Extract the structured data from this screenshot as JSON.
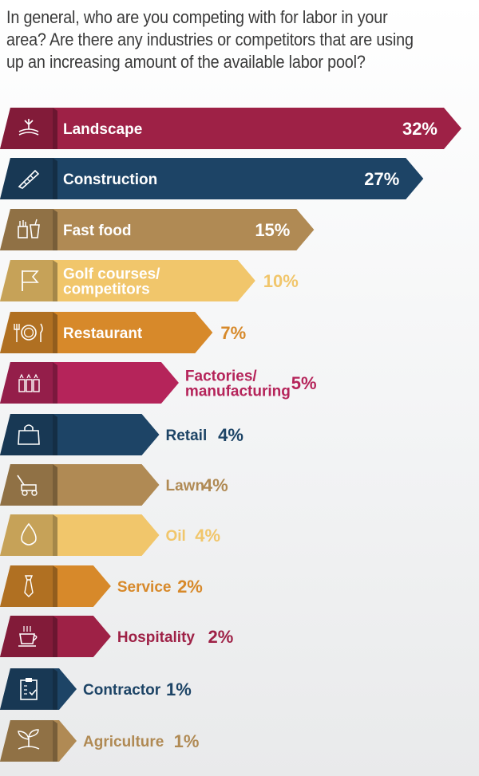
{
  "question": "In general, who are you competing with for labor in your area? Are there any industries or competitors that are using up an increasing amount of the available labor pool?",
  "chart_data": {
    "type": "bar",
    "orientation": "horizontal",
    "categories": [
      "Landscape",
      "Construction",
      "Fast food",
      "Golf courses/ competitors",
      "Restaurant",
      "Factories/ manufacturing",
      "Retail",
      "Lawn",
      "Oil",
      "Service",
      "Hospitality",
      "Contractor",
      "Agriculture"
    ],
    "values": [
      32,
      27,
      15,
      10,
      7,
      5,
      4,
      4,
      4,
      2,
      2,
      1,
      1
    ],
    "value_labels": [
      "32%",
      "27%",
      "15%",
      "10%",
      "7%",
      "5%",
      "4%",
      "4%",
      "4%",
      "2%",
      "2%",
      "1%",
      "1%"
    ],
    "label_lines": [
      [
        "Landscape"
      ],
      [
        "Construction"
      ],
      [
        "Fast food"
      ],
      [
        "Golf courses/",
        "competitors"
      ],
      [
        "Restaurant"
      ],
      [
        "Factories/",
        "manufacturing"
      ],
      [
        "Retail"
      ],
      [
        "Lawn"
      ],
      [
        "Oil"
      ],
      [
        "Service"
      ],
      [
        "Hospitality"
      ],
      [
        "Contractor"
      ],
      [
        "Agriculture"
      ]
    ],
    "icons": [
      "landscape-icon",
      "saw-icon",
      "fast-food-icon",
      "golf-flag-icon",
      "plate-utensils-icon",
      "factory-icon",
      "shopping-bag-icon",
      "lawn-mower-icon",
      "oil-drop-icon",
      "necktie-icon",
      "coffee-cup-icon",
      "clipboard-icon",
      "sprout-icon"
    ],
    "colors": [
      "#9e2146",
      "#1d4466",
      "#b08a54",
      "#f1c66b",
      "#d7892a",
      "#b5245a",
      "#1d4466",
      "#b08a54",
      "#f1c66b",
      "#d7892a",
      "#9e2146",
      "#1d4466",
      "#b08a54"
    ],
    "label_inside": [
      true,
      true,
      true,
      true,
      true,
      false,
      false,
      false,
      false,
      false,
      false,
      false,
      false
    ],
    "xlim": [
      0,
      32
    ]
  }
}
